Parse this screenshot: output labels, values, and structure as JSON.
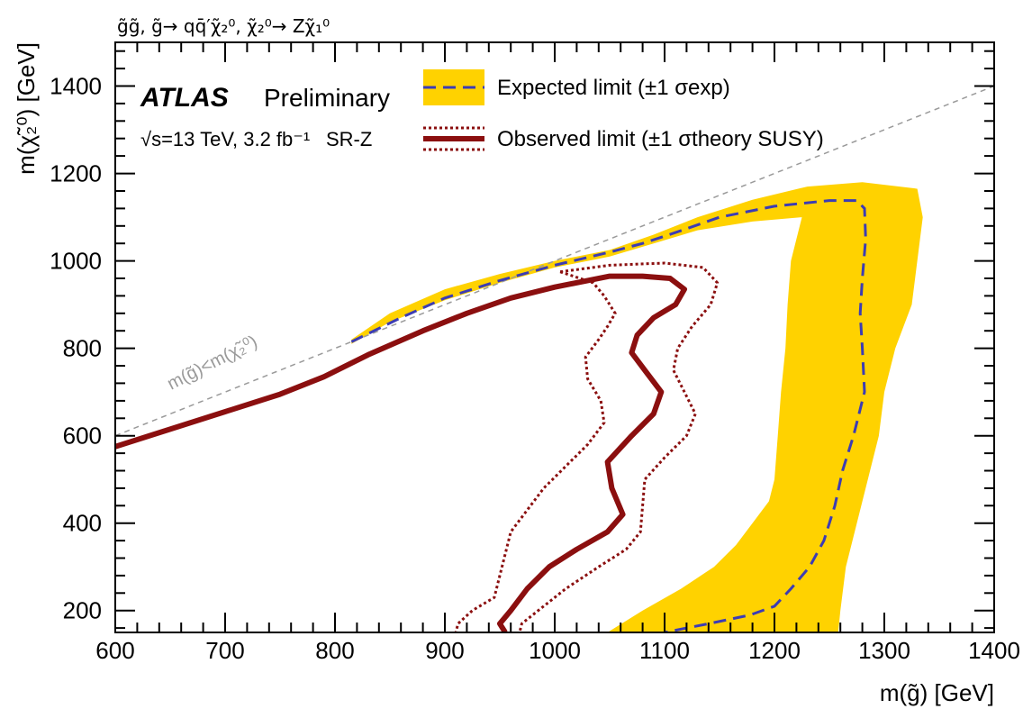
{
  "chart_data": {
    "type": "line",
    "process_label": "g̃g̃, g̃→ qq̄′χ̃₂⁰, χ̃₂⁰→ Zχ̃₁⁰",
    "atlas_label": "ATLAS",
    "status_label": "Preliminary",
    "energy_lumi_label": "√s=13 TeV, 3.2 fb⁻¹",
    "signal_region_label": "SR-Z",
    "xlabel": "m(g̃) [GeV]",
    "ylabel": "m(χ̃₂⁰) [GeV]",
    "xlim": [
      600,
      1400
    ],
    "ylim": [
      150,
      1500
    ],
    "x_ticks": [
      600,
      700,
      800,
      900,
      1000,
      1100,
      1200,
      1300,
      1400
    ],
    "y_ticks": [
      200,
      400,
      600,
      800,
      1000,
      1200,
      1400
    ],
    "grid": false,
    "legend_position": "top-right",
    "diagonal_label": "m(g̃)<m(χ̃₂⁰)",
    "diagonal_line": {
      "x": [
        600,
        1400
      ],
      "y": [
        600,
        1400
      ]
    },
    "colors": {
      "expected_band": "#ffd200",
      "expected_line": "#3c3cb4",
      "observed_line": "#8b0f0f",
      "diagonal": "#9a9a9a"
    },
    "series": [
      {
        "name": "Expected limit (±1 σexp)",
        "style": "band-dashed",
        "band": {
          "upper": {
            "x": [
              815,
              850,
              900,
              950,
              1000,
              1050,
              1090,
              1130,
              1180,
              1230,
              1280,
              1330
            ],
            "y": [
              820,
              880,
              935,
              970,
              1000,
              1025,
              1060,
              1100,
              1140,
              1170,
              1180,
              1165
            ]
          },
          "outer_right": {
            "x": [
              1330,
              1335,
              1330,
              1325,
              1310,
              1300,
              1295,
              1285,
              1275,
              1265,
              1260,
              1258
            ],
            "y": [
              1165,
              1100,
              1000,
              900,
              800,
              700,
              600,
              500,
              400,
              300,
              200,
              150
            ]
          },
          "inner_right": {
            "x": [
              1048,
              1080,
              1115,
              1145,
              1165,
              1180,
              1195,
              1200,
              1203,
              1206,
              1210,
              1212,
              1215,
              1225
            ],
            "y": [
              150,
              200,
              250,
              300,
              350,
              400,
              450,
              500,
              600,
              700,
              800,
              900,
              1000,
              1100
            ]
          },
          "lower": {
            "x": [
              815,
              850,
              900,
              950,
              1000,
              1050,
              1090,
              1130,
              1180,
              1225
            ],
            "y": [
              810,
              860,
              910,
              950,
              985,
              1010,
              1040,
              1070,
              1090,
              1100
            ]
          }
        },
        "line": {
          "x": [
            815,
            860,
            900,
            950,
            1000,
            1050,
            1080,
            1110,
            1150,
            1200,
            1250,
            1275,
            1282,
            1283,
            1280,
            1278,
            1280,
            1282,
            1272,
            1262,
            1255,
            1245,
            1232,
            1215,
            1200,
            1178,
            1140,
            1100
          ],
          "y": [
            815,
            870,
            915,
            955,
            990,
            1020,
            1040,
            1065,
            1100,
            1125,
            1138,
            1138,
            1120,
            1050,
            960,
            880,
            800,
            700,
            600,
            520,
            440,
            360,
            300,
            250,
            210,
            190,
            170,
            150
          ]
        }
      },
      {
        "name": "Observed limit (±1 σtheory SUSY)",
        "style": "solid-with-dotted-band",
        "line": {
          "x": [
            600,
            650,
            700,
            750,
            790,
            830,
            880,
            920,
            960,
            1000,
            1030,
            1050,
            1080,
            1105,
            1118,
            1110,
            1090,
            1075,
            1070,
            1082,
            1097,
            1090,
            1070,
            1048,
            1052,
            1062,
            1048,
            1020,
            995,
            975,
            960,
            950,
            955
          ],
          "y": [
            575,
            615,
            655,
            695,
            735,
            785,
            840,
            880,
            915,
            940,
            955,
            965,
            965,
            960,
            935,
            900,
            870,
            830,
            790,
            750,
            700,
            650,
            600,
            540,
            480,
            420,
            380,
            340,
            300,
            250,
            200,
            170,
            150
          ]
        },
        "theory_up": {
          "x": [
            1005,
            1050,
            1100,
            1135,
            1148,
            1142,
            1125,
            1112,
            1108,
            1118,
            1128,
            1120,
            1100,
            1082,
            1080,
            1078,
            1065,
            1040,
            1010,
            985,
            970,
            968
          ],
          "y": [
            975,
            990,
            995,
            985,
            950,
            900,
            850,
            800,
            750,
            700,
            650,
            600,
            550,
            500,
            440,
            380,
            340,
            300,
            250,
            200,
            170,
            150
          ]
        },
        "theory_down": {
          "x": [
            1005,
            1035,
            1045,
            1055,
            1048,
            1040,
            1028,
            1030,
            1042,
            1045,
            1030,
            1010,
            990,
            975,
            960,
            955,
            950,
            945,
            925,
            912,
            910
          ],
          "y": [
            975,
            950,
            920,
            880,
            850,
            820,
            780,
            730,
            680,
            630,
            580,
            530,
            480,
            430,
            380,
            330,
            280,
            230,
            200,
            170,
            150
          ]
        }
      }
    ]
  }
}
